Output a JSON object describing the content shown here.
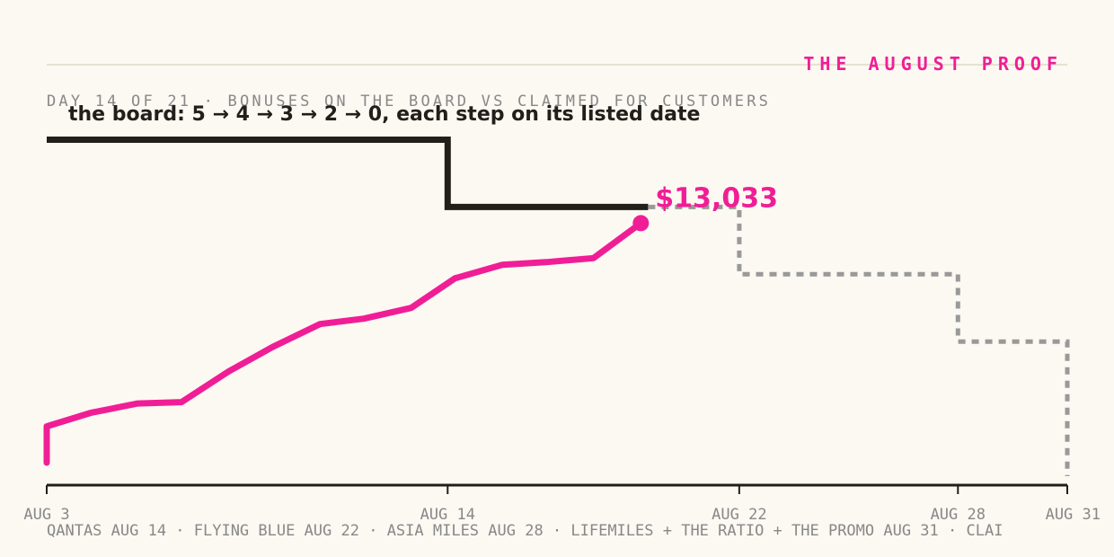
{
  "kicker": "THE AUGUST PROOF",
  "subtitle": "DAY 14 OF 21 · BONUSES ON THE BOARD VS CLAIMED FOR CUSTOMERS",
  "board_annotation": "the board: 5 → 4 → 3 → 2 → 0, each step on its listed date",
  "end_value_label": "$13,033",
  "footer_note": "QANTAS AUG 14 · FLYING BLUE AUG 22 · ASIA MILES AUG 28 · LIFEMILES + THE RATIO + THE PROMO AUG 31 · CLAI",
  "colors": {
    "background": "#FCF8F2",
    "accent": "#F01E96",
    "board": "#221E1A",
    "projected": "#999999",
    "rule": "#E6E1D2",
    "muted": "#888888"
  },
  "chart_data": {
    "type": "line",
    "x_domain": [
      "2024-08-03",
      "2024-08-31"
    ],
    "x_ticks": [
      {
        "label": "AUG 3",
        "day": 3
      },
      {
        "label": "AUG 14",
        "day": 14
      },
      {
        "label": "AUG 22",
        "day": 22
      },
      {
        "label": "AUG 28",
        "day": 28
      },
      {
        "label": "AUG 31",
        "day": 31
      }
    ],
    "series": [
      {
        "role": "board",
        "style": "step-solid",
        "points": [
          {
            "day": 3,
            "value": 5
          },
          {
            "day": 14,
            "value": 5
          },
          {
            "day": 14,
            "value": 4
          },
          {
            "day": 19.5,
            "value": 4
          }
        ]
      },
      {
        "role": "board-scheduled",
        "style": "step-dashed",
        "points": [
          {
            "day": 19.5,
            "value": 4
          },
          {
            "day": 22,
            "value": 4
          },
          {
            "day": 22,
            "value": 3
          },
          {
            "day": 28,
            "value": 3
          },
          {
            "day": 28,
            "value": 2
          },
          {
            "day": 31,
            "value": 2
          },
          {
            "day": 31,
            "value": 0
          }
        ]
      },
      {
        "role": "claimed",
        "style": "line",
        "points": [
          {
            "day": 3,
            "value": 0.2
          },
          {
            "day": 3,
            "value": 0.74
          },
          {
            "day": 4.2,
            "value": 0.94
          },
          {
            "day": 5.5,
            "value": 1.08
          },
          {
            "day": 6.7,
            "value": 1.1
          },
          {
            "day": 8,
            "value": 1.56
          },
          {
            "day": 9.2,
            "value": 1.92
          },
          {
            "day": 10.5,
            "value": 2.26
          },
          {
            "day": 11.7,
            "value": 2.34
          },
          {
            "day": 13,
            "value": 2.5
          },
          {
            "day": 14.2,
            "value": 2.94
          },
          {
            "day": 15.5,
            "value": 3.14
          },
          {
            "day": 16.7,
            "value": 3.18
          },
          {
            "day": 18,
            "value": 3.24
          },
          {
            "day": 19.3,
            "value": 3.76
          }
        ]
      }
    ],
    "y_domain": [
      0,
      5.1
    ]
  }
}
